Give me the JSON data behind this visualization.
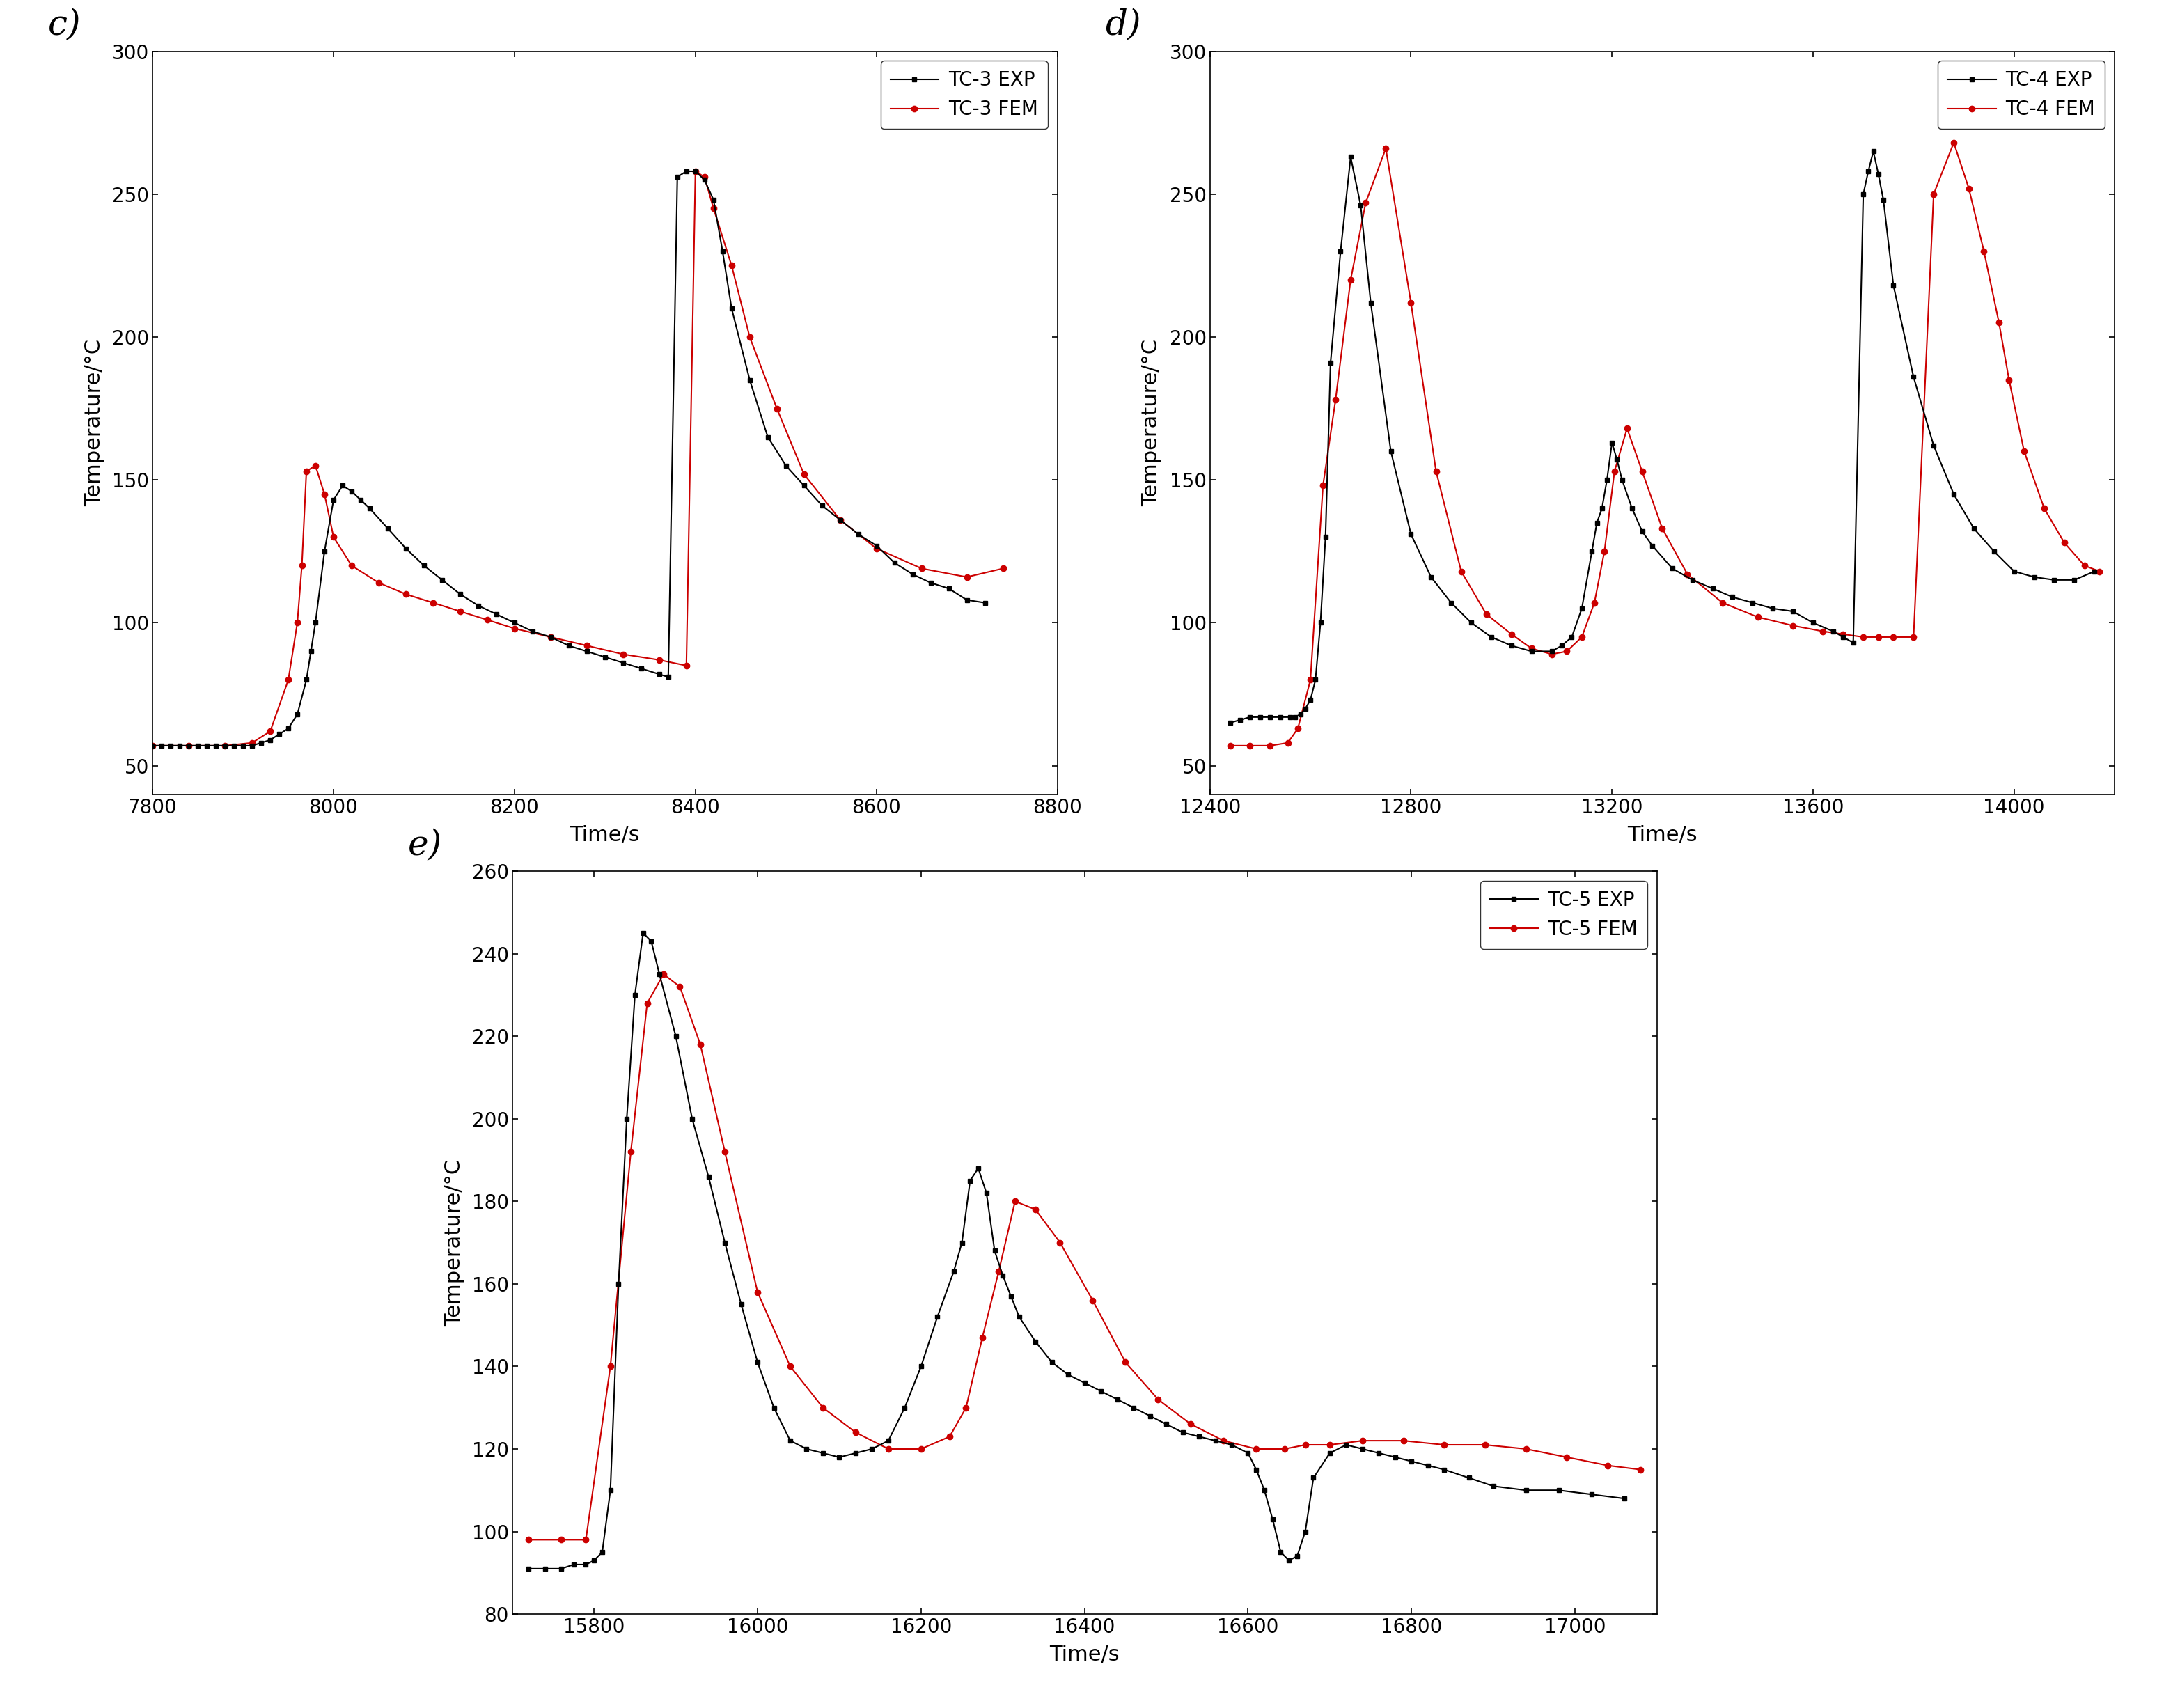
{
  "panels": [
    {
      "label": "c)",
      "xlim": [
        7800,
        8800
      ],
      "ylim": [
        40,
        300
      ],
      "xticks": [
        7800,
        8000,
        8200,
        8400,
        8600,
        8800
      ],
      "yticks": [
        50,
        100,
        150,
        200,
        250,
        300
      ],
      "xlabel": "Time/s",
      "ylabel": "Temperature/°C",
      "legend": [
        "TC-3 EXP",
        "TC-3 FEM"
      ],
      "exp_x": [
        7800,
        7810,
        7820,
        7830,
        7840,
        7850,
        7860,
        7870,
        7880,
        7890,
        7900,
        7910,
        7920,
        7930,
        7940,
        7950,
        7960,
        7970,
        7975,
        7980,
        7990,
        8000,
        8010,
        8020,
        8030,
        8040,
        8060,
        8080,
        8100,
        8120,
        8140,
        8160,
        8180,
        8200,
        8220,
        8240,
        8260,
        8280,
        8300,
        8320,
        8340,
        8360,
        8370,
        8380,
        8390,
        8400,
        8410,
        8420,
        8430,
        8440,
        8460,
        8480,
        8500,
        8520,
        8540,
        8560,
        8580,
        8600,
        8620,
        8640,
        8660,
        8680,
        8700,
        8720
      ],
      "exp_y": [
        57,
        57,
        57,
        57,
        57,
        57,
        57,
        57,
        57,
        57,
        57,
        57,
        58,
        59,
        61,
        63,
        68,
        80,
        90,
        100,
        125,
        143,
        148,
        146,
        143,
        140,
        133,
        126,
        120,
        115,
        110,
        106,
        103,
        100,
        97,
        95,
        92,
        90,
        88,
        86,
        84,
        82,
        81,
        256,
        258,
        258,
        255,
        248,
        230,
        210,
        185,
        165,
        155,
        148,
        141,
        136,
        131,
        127,
        121,
        117,
        114,
        112,
        108,
        107
      ],
      "fem_x": [
        7800,
        7840,
        7880,
        7910,
        7930,
        7950,
        7960,
        7965,
        7970,
        7980,
        7990,
        8000,
        8020,
        8050,
        8080,
        8110,
        8140,
        8170,
        8200,
        8240,
        8280,
        8320,
        8360,
        8390,
        8400,
        8410,
        8420,
        8440,
        8460,
        8490,
        8520,
        8560,
        8600,
        8650,
        8700,
        8740
      ],
      "fem_y": [
        57,
        57,
        57,
        58,
        62,
        80,
        100,
        120,
        153,
        155,
        145,
        130,
        120,
        114,
        110,
        107,
        104,
        101,
        98,
        95,
        92,
        89,
        87,
        85,
        258,
        256,
        245,
        225,
        200,
        175,
        152,
        136,
        126,
        119,
        116,
        119
      ]
    },
    {
      "label": "d)",
      "xlim": [
        12400,
        14200
      ],
      "ylim": [
        40,
        300
      ],
      "xticks": [
        12400,
        12800,
        13200,
        13600,
        14000
      ],
      "yticks": [
        50,
        100,
        150,
        200,
        250,
        300
      ],
      "xlabel": "Time/s",
      "ylabel": "Temperature/°C",
      "legend": [
        "TC-4 EXP",
        "TC-4 FEM"
      ],
      "exp_x": [
        12440,
        12460,
        12480,
        12500,
        12520,
        12540,
        12560,
        12570,
        12580,
        12590,
        12600,
        12610,
        12620,
        12630,
        12640,
        12660,
        12680,
        12700,
        12720,
        12760,
        12800,
        12840,
        12880,
        12920,
        12960,
        13000,
        13040,
        13080,
        13100,
        13120,
        13140,
        13160,
        13170,
        13180,
        13190,
        13200,
        13210,
        13220,
        13240,
        13260,
        13280,
        13320,
        13360,
        13400,
        13440,
        13480,
        13520,
        13560,
        13600,
        13640,
        13660,
        13680,
        13700,
        13710,
        13720,
        13730,
        13740,
        13760,
        13800,
        13840,
        13880,
        13920,
        13960,
        14000,
        14040,
        14080,
        14120,
        14160
      ],
      "exp_y": [
        65,
        66,
        67,
        67,
        67,
        67,
        67,
        67,
        68,
        70,
        73,
        80,
        100,
        130,
        191,
        230,
        263,
        246,
        212,
        160,
        131,
        116,
        107,
        100,
        95,
        92,
        90,
        90,
        92,
        95,
        105,
        125,
        135,
        140,
        150,
        163,
        157,
        150,
        140,
        132,
        127,
        119,
        115,
        112,
        109,
        107,
        105,
        104,
        100,
        97,
        95,
        93,
        250,
        258,
        265,
        257,
        248,
        218,
        186,
        162,
        145,
        133,
        125,
        118,
        116,
        115,
        115,
        118
      ],
      "fem_x": [
        12440,
        12480,
        12520,
        12555,
        12575,
        12600,
        12625,
        12650,
        12680,
        12710,
        12750,
        12800,
        12850,
        12900,
        12950,
        13000,
        13040,
        13080,
        13110,
        13140,
        13165,
        13185,
        13205,
        13230,
        13260,
        13300,
        13350,
        13420,
        13490,
        13560,
        13620,
        13660,
        13700,
        13730,
        13760,
        13800,
        13840,
        13880,
        13910,
        13940,
        13970,
        13990,
        14020,
        14060,
        14100,
        14140,
        14170
      ],
      "fem_y": [
        57,
        57,
        57,
        58,
        63,
        80,
        148,
        178,
        220,
        247,
        266,
        212,
        153,
        118,
        103,
        96,
        91,
        89,
        90,
        95,
        107,
        125,
        153,
        168,
        153,
        133,
        117,
        107,
        102,
        99,
        97,
        96,
        95,
        95,
        95,
        95,
        250,
        268,
        252,
        230,
        205,
        185,
        160,
        140,
        128,
        120,
        118
      ]
    },
    {
      "label": "e)",
      "xlim": [
        15700,
        17100
      ],
      "ylim": [
        80,
        260
      ],
      "xticks": [
        15800,
        16000,
        16200,
        16400,
        16600,
        16800,
        17000
      ],
      "yticks": [
        80,
        100,
        120,
        140,
        160,
        180,
        200,
        220,
        240,
        260
      ],
      "xlabel": "Time/s",
      "ylabel": "Temperature/°C",
      "legend": [
        "TC-5 EXP",
        "TC-5 FEM"
      ],
      "exp_x": [
        15720,
        15740,
        15760,
        15775,
        15790,
        15800,
        15810,
        15820,
        15830,
        15840,
        15850,
        15860,
        15870,
        15880,
        15900,
        15920,
        15940,
        15960,
        15980,
        16000,
        16020,
        16040,
        16060,
        16080,
        16100,
        16120,
        16140,
        16160,
        16180,
        16200,
        16220,
        16240,
        16250,
        16260,
        16270,
        16280,
        16290,
        16300,
        16310,
        16320,
        16340,
        16360,
        16380,
        16400,
        16420,
        16440,
        16460,
        16480,
        16500,
        16520,
        16540,
        16560,
        16580,
        16600,
        16610,
        16620,
        16630,
        16640,
        16650,
        16660,
        16670,
        16680,
        16700,
        16720,
        16740,
        16760,
        16780,
        16800,
        16820,
        16840,
        16870,
        16900,
        16940,
        16980,
        17020,
        17060
      ],
      "exp_y": [
        91,
        91,
        91,
        92,
        92,
        93,
        95,
        110,
        160,
        200,
        230,
        245,
        243,
        235,
        220,
        200,
        186,
        170,
        155,
        141,
        130,
        122,
        120,
        119,
        118,
        119,
        120,
        122,
        130,
        140,
        152,
        163,
        170,
        185,
        188,
        182,
        168,
        162,
        157,
        152,
        146,
        141,
        138,
        136,
        134,
        132,
        130,
        128,
        126,
        124,
        123,
        122,
        121,
        119,
        115,
        110,
        103,
        95,
        93,
        94,
        100,
        113,
        119,
        121,
        120,
        119,
        118,
        117,
        116,
        115,
        113,
        111,
        110,
        110,
        109,
        108
      ],
      "fem_x": [
        15720,
        15760,
        15790,
        15820,
        15845,
        15865,
        15885,
        15905,
        15930,
        15960,
        16000,
        16040,
        16080,
        16120,
        16160,
        16200,
        16235,
        16255,
        16275,
        16295,
        16315,
        16340,
        16370,
        16410,
        16450,
        16490,
        16530,
        16570,
        16610,
        16645,
        16670,
        16700,
        16740,
        16790,
        16840,
        16890,
        16940,
        16990,
        17040,
        17080
      ],
      "fem_y": [
        98,
        98,
        98,
        140,
        192,
        228,
        235,
        232,
        218,
        192,
        158,
        140,
        130,
        124,
        120,
        120,
        123,
        130,
        147,
        163,
        180,
        178,
        170,
        156,
        141,
        132,
        126,
        122,
        120,
        120,
        121,
        121,
        122,
        122,
        121,
        121,
        120,
        118,
        116,
        115
      ]
    }
  ],
  "exp_color": "#000000",
  "fem_color": "#cc0000",
  "exp_marker": "s",
  "fem_marker": "o",
  "exp_markersize": 5,
  "fem_markersize": 6,
  "linewidth": 1.5,
  "font_size_label": 22,
  "font_size_tick": 20,
  "font_size_legend": 20,
  "font_size_panel_label": 36
}
